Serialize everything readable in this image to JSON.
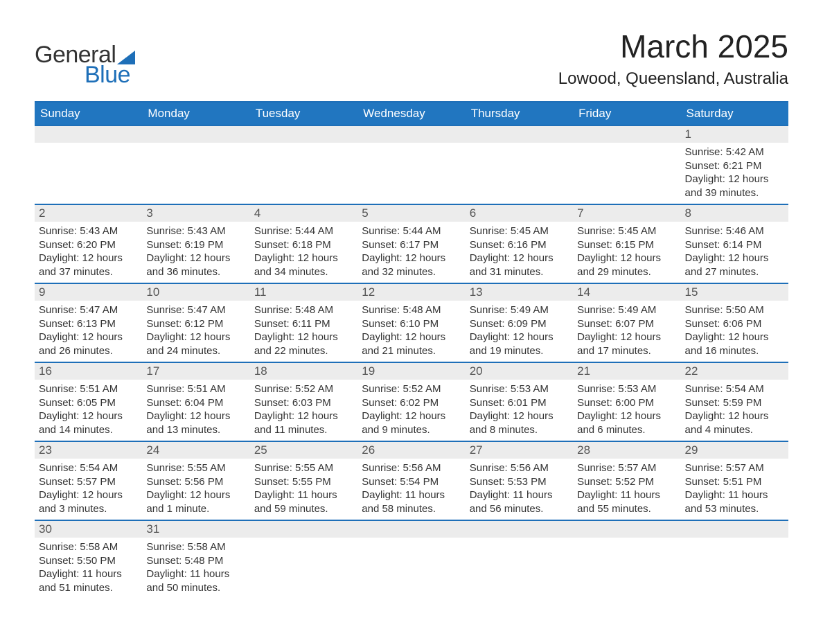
{
  "logo": {
    "text_general": "General",
    "text_blue": "Blue",
    "triangle_color": "#1e6fb8"
  },
  "header": {
    "month_title": "March 2025",
    "location": "Lowood, Queensland, Australia"
  },
  "colors": {
    "header_bg": "#2176c0",
    "header_text": "#ffffff",
    "border": "#1e6fb8",
    "daynum_bg": "#ececec",
    "text": "#333333"
  },
  "weekdays": [
    "Sunday",
    "Monday",
    "Tuesday",
    "Wednesday",
    "Thursday",
    "Friday",
    "Saturday"
  ],
  "weeks": [
    [
      {
        "day": "",
        "sunrise": "",
        "sunset": "",
        "daylight": ""
      },
      {
        "day": "",
        "sunrise": "",
        "sunset": "",
        "daylight": ""
      },
      {
        "day": "",
        "sunrise": "",
        "sunset": "",
        "daylight": ""
      },
      {
        "day": "",
        "sunrise": "",
        "sunset": "",
        "daylight": ""
      },
      {
        "day": "",
        "sunrise": "",
        "sunset": "",
        "daylight": ""
      },
      {
        "day": "",
        "sunrise": "",
        "sunset": "",
        "daylight": ""
      },
      {
        "day": "1",
        "sunrise": "Sunrise: 5:42 AM",
        "sunset": "Sunset: 6:21 PM",
        "daylight": "Daylight: 12 hours and 39 minutes."
      }
    ],
    [
      {
        "day": "2",
        "sunrise": "Sunrise: 5:43 AM",
        "sunset": "Sunset: 6:20 PM",
        "daylight": "Daylight: 12 hours and 37 minutes."
      },
      {
        "day": "3",
        "sunrise": "Sunrise: 5:43 AM",
        "sunset": "Sunset: 6:19 PM",
        "daylight": "Daylight: 12 hours and 36 minutes."
      },
      {
        "day": "4",
        "sunrise": "Sunrise: 5:44 AM",
        "sunset": "Sunset: 6:18 PM",
        "daylight": "Daylight: 12 hours and 34 minutes."
      },
      {
        "day": "5",
        "sunrise": "Sunrise: 5:44 AM",
        "sunset": "Sunset: 6:17 PM",
        "daylight": "Daylight: 12 hours and 32 minutes."
      },
      {
        "day": "6",
        "sunrise": "Sunrise: 5:45 AM",
        "sunset": "Sunset: 6:16 PM",
        "daylight": "Daylight: 12 hours and 31 minutes."
      },
      {
        "day": "7",
        "sunrise": "Sunrise: 5:45 AM",
        "sunset": "Sunset: 6:15 PM",
        "daylight": "Daylight: 12 hours and 29 minutes."
      },
      {
        "day": "8",
        "sunrise": "Sunrise: 5:46 AM",
        "sunset": "Sunset: 6:14 PM",
        "daylight": "Daylight: 12 hours and 27 minutes."
      }
    ],
    [
      {
        "day": "9",
        "sunrise": "Sunrise: 5:47 AM",
        "sunset": "Sunset: 6:13 PM",
        "daylight": "Daylight: 12 hours and 26 minutes."
      },
      {
        "day": "10",
        "sunrise": "Sunrise: 5:47 AM",
        "sunset": "Sunset: 6:12 PM",
        "daylight": "Daylight: 12 hours and 24 minutes."
      },
      {
        "day": "11",
        "sunrise": "Sunrise: 5:48 AM",
        "sunset": "Sunset: 6:11 PM",
        "daylight": "Daylight: 12 hours and 22 minutes."
      },
      {
        "day": "12",
        "sunrise": "Sunrise: 5:48 AM",
        "sunset": "Sunset: 6:10 PM",
        "daylight": "Daylight: 12 hours and 21 minutes."
      },
      {
        "day": "13",
        "sunrise": "Sunrise: 5:49 AM",
        "sunset": "Sunset: 6:09 PM",
        "daylight": "Daylight: 12 hours and 19 minutes."
      },
      {
        "day": "14",
        "sunrise": "Sunrise: 5:49 AM",
        "sunset": "Sunset: 6:07 PM",
        "daylight": "Daylight: 12 hours and 17 minutes."
      },
      {
        "day": "15",
        "sunrise": "Sunrise: 5:50 AM",
        "sunset": "Sunset: 6:06 PM",
        "daylight": "Daylight: 12 hours and 16 minutes."
      }
    ],
    [
      {
        "day": "16",
        "sunrise": "Sunrise: 5:51 AM",
        "sunset": "Sunset: 6:05 PM",
        "daylight": "Daylight: 12 hours and 14 minutes."
      },
      {
        "day": "17",
        "sunrise": "Sunrise: 5:51 AM",
        "sunset": "Sunset: 6:04 PM",
        "daylight": "Daylight: 12 hours and 13 minutes."
      },
      {
        "day": "18",
        "sunrise": "Sunrise: 5:52 AM",
        "sunset": "Sunset: 6:03 PM",
        "daylight": "Daylight: 12 hours and 11 minutes."
      },
      {
        "day": "19",
        "sunrise": "Sunrise: 5:52 AM",
        "sunset": "Sunset: 6:02 PM",
        "daylight": "Daylight: 12 hours and 9 minutes."
      },
      {
        "day": "20",
        "sunrise": "Sunrise: 5:53 AM",
        "sunset": "Sunset: 6:01 PM",
        "daylight": "Daylight: 12 hours and 8 minutes."
      },
      {
        "day": "21",
        "sunrise": "Sunrise: 5:53 AM",
        "sunset": "Sunset: 6:00 PM",
        "daylight": "Daylight: 12 hours and 6 minutes."
      },
      {
        "day": "22",
        "sunrise": "Sunrise: 5:54 AM",
        "sunset": "Sunset: 5:59 PM",
        "daylight": "Daylight: 12 hours and 4 minutes."
      }
    ],
    [
      {
        "day": "23",
        "sunrise": "Sunrise: 5:54 AM",
        "sunset": "Sunset: 5:57 PM",
        "daylight": "Daylight: 12 hours and 3 minutes."
      },
      {
        "day": "24",
        "sunrise": "Sunrise: 5:55 AM",
        "sunset": "Sunset: 5:56 PM",
        "daylight": "Daylight: 12 hours and 1 minute."
      },
      {
        "day": "25",
        "sunrise": "Sunrise: 5:55 AM",
        "sunset": "Sunset: 5:55 PM",
        "daylight": "Daylight: 11 hours and 59 minutes."
      },
      {
        "day": "26",
        "sunrise": "Sunrise: 5:56 AM",
        "sunset": "Sunset: 5:54 PM",
        "daylight": "Daylight: 11 hours and 58 minutes."
      },
      {
        "day": "27",
        "sunrise": "Sunrise: 5:56 AM",
        "sunset": "Sunset: 5:53 PM",
        "daylight": "Daylight: 11 hours and 56 minutes."
      },
      {
        "day": "28",
        "sunrise": "Sunrise: 5:57 AM",
        "sunset": "Sunset: 5:52 PM",
        "daylight": "Daylight: 11 hours and 55 minutes."
      },
      {
        "day": "29",
        "sunrise": "Sunrise: 5:57 AM",
        "sunset": "Sunset: 5:51 PM",
        "daylight": "Daylight: 11 hours and 53 minutes."
      }
    ],
    [
      {
        "day": "30",
        "sunrise": "Sunrise: 5:58 AM",
        "sunset": "Sunset: 5:50 PM",
        "daylight": "Daylight: 11 hours and 51 minutes."
      },
      {
        "day": "31",
        "sunrise": "Sunrise: 5:58 AM",
        "sunset": "Sunset: 5:48 PM",
        "daylight": "Daylight: 11 hours and 50 minutes."
      },
      {
        "day": "",
        "sunrise": "",
        "sunset": "",
        "daylight": ""
      },
      {
        "day": "",
        "sunrise": "",
        "sunset": "",
        "daylight": ""
      },
      {
        "day": "",
        "sunrise": "",
        "sunset": "",
        "daylight": ""
      },
      {
        "day": "",
        "sunrise": "",
        "sunset": "",
        "daylight": ""
      },
      {
        "day": "",
        "sunrise": "",
        "sunset": "",
        "daylight": ""
      }
    ]
  ]
}
